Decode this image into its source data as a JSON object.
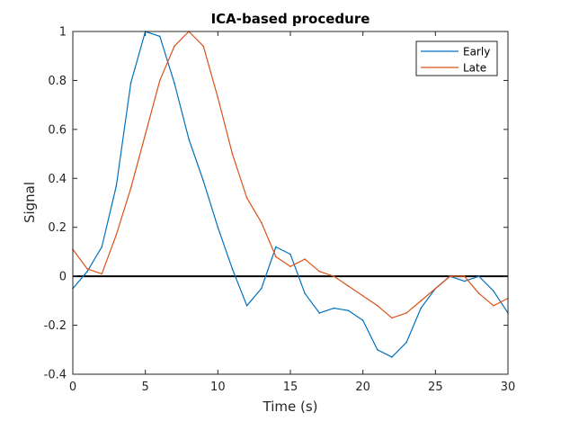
{
  "chart_data": {
    "type": "line",
    "title": "ICA-based procedure",
    "xlabel": "Time (s)",
    "ylabel": "Signal",
    "xlim": [
      0,
      30
    ],
    "ylim": [
      -0.4,
      1
    ],
    "xticks": [
      0,
      5,
      10,
      15,
      20,
      25,
      30
    ],
    "yticks": [
      -0.4,
      -0.2,
      0,
      0.2,
      0.4,
      0.6,
      0.8,
      1
    ],
    "xtick_labels": [
      "0",
      "5",
      "10",
      "15",
      "20",
      "25",
      "30"
    ],
    "ytick_labels": [
      "-0.4",
      "-0.2",
      "0",
      "0.2",
      "0.4",
      "0.6",
      "0.8",
      "1"
    ],
    "grid": false,
    "legend_position": "top-right",
    "reference_line_y": 0,
    "x": [
      0,
      1,
      2,
      3,
      4,
      5,
      6,
      7,
      8,
      9,
      10,
      11,
      12,
      13,
      14,
      15,
      16,
      17,
      18,
      19,
      20,
      21,
      22,
      23,
      24,
      25,
      26,
      27,
      28,
      29,
      30
    ],
    "series": [
      {
        "name": "Early",
        "color": "#0072bd",
        "values": [
          -0.05,
          0.02,
          0.12,
          0.37,
          0.79,
          1.0,
          0.98,
          0.79,
          0.56,
          0.39,
          0.2,
          0.03,
          -0.12,
          -0.05,
          0.12,
          0.09,
          -0.07,
          -0.15,
          -0.13,
          -0.14,
          -0.18,
          -0.3,
          -0.33,
          -0.27,
          -0.13,
          -0.05,
          0.0,
          -0.02,
          0.0,
          -0.06,
          -0.15
        ]
      },
      {
        "name": "Late",
        "color": "#d95319",
        "values": [
          0.11,
          0.03,
          0.01,
          0.17,
          0.36,
          0.58,
          0.8,
          0.94,
          1.0,
          0.94,
          0.73,
          0.5,
          0.32,
          0.22,
          0.08,
          0.04,
          0.07,
          0.02,
          0.0,
          -0.04,
          -0.08,
          -0.12,
          -0.17,
          -0.15,
          -0.1,
          -0.05,
          0.0,
          0.0,
          -0.07,
          -0.12,
          -0.09
        ]
      }
    ]
  }
}
